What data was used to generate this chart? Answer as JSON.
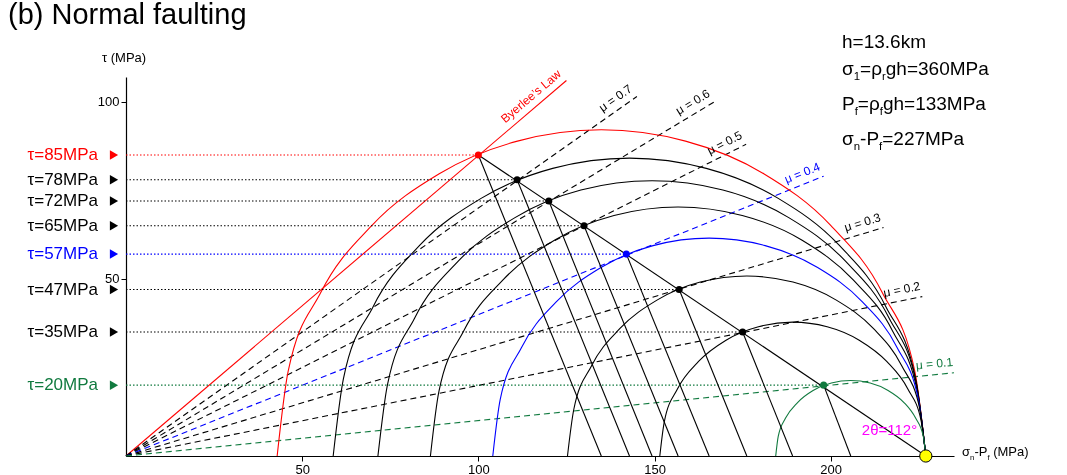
{
  "chart_data": {
    "type": "line",
    "title": "(b) Normal faulting",
    "xlabel": "σ$_{n}$-P$_{f}$ (MPa)",
    "ylabel": "τ (MPa)",
    "xlim": [
      0,
      235
    ],
    "ylim": [
      0,
      107
    ],
    "xticks": [
      50,
      100,
      150,
      200
    ],
    "yticks": [
      50,
      100
    ],
    "grid": false,
    "legend": "left",
    "annotations": [
      "h=13.6km",
      "σ$_{1}$=ρ$_{r}$gh=360MPa",
      "P$_{f}$=ρ$_{f}$gh=133MPa",
      "σ$_{n}$-P$_{f}$=227MPa",
      {
        "text": "2θ=112°",
        "x": 206,
        "y": 0
      }
    ],
    "series": [
      {
        "name": "Byerlee’s Law",
        "type": "line",
        "color": "#ff0000",
        "line_style": "solid",
        "x": [
          0,
          125
        ],
        "values": [
          0,
          106
        ]
      },
      {
        "name": "μ = 0.7",
        "type": "line",
        "color": "#000000",
        "line_style": "dashed",
        "x": [
          0,
          145
        ],
        "values": [
          0,
          101.5
        ]
      },
      {
        "name": "μ = 0.6",
        "type": "line",
        "color": "#000000",
        "line_style": "dashed",
        "x": [
          0,
          167
        ],
        "values": [
          0,
          100
        ]
      },
      {
        "name": "μ = 0.5",
        "type": "line",
        "color": "#000000",
        "line_style": "dashed",
        "x": [
          0,
          176
        ],
        "values": [
          0,
          88
        ]
      },
      {
        "name": "μ = 0.4",
        "type": "line",
        "color": "#0000ff",
        "line_style": "dashed",
        "x": [
          0,
          198
        ],
        "values": [
          0,
          79
        ]
      },
      {
        "name": "μ = 0.3",
        "type": "line",
        "color": "#000000",
        "line_style": "dashed",
        "x": [
          0,
          215
        ],
        "values": [
          0,
          64.5
        ]
      },
      {
        "name": "μ = 0.2",
        "type": "line",
        "color": "#000000",
        "line_style": "dashed",
        "x": [
          0,
          226
        ],
        "values": [
          0,
          45
        ]
      },
      {
        "name": "μ = 0.1",
        "type": "line",
        "color": "#117a3f",
        "line_style": "dashed",
        "x": [
          0,
          235
        ],
        "values": [
          0,
          23.5
        ]
      },
      {
        "type": "line",
        "color": "#ff0000",
        "line_style": "solid",
        "x": [
          42.9,
          46.0,
          55.2,
          69.8,
          88.9,
          111.1,
          134.9,
          158.8,
          181.0,
          200.0,
          214.7,
          223.9,
          227.0
        ],
        "values": [
          0,
          23.8,
          46.0,
          65.1,
          79.7,
          88.9,
          92.1,
          88.9,
          79.7,
          65.1,
          46.0,
          23.8,
          0
        ]
      },
      {
        "type": "line",
        "color": "#000000",
        "line_style": "solid",
        "x": [
          58.8,
          61.7,
          70.1,
          83.4,
          100.9,
          121.1,
          142.9,
          164.7,
          185.0,
          202.4,
          215.7,
          224.1,
          227.0
        ],
        "values": [
          0,
          21.8,
          42.1,
          59.5,
          72.8,
          81.2,
          84.1,
          81.2,
          72.8,
          59.5,
          42.1,
          21.8,
          0
        ]
      },
      {
        "type": "line",
        "color": "#000000",
        "line_style": "solid",
        "x": [
          71.5,
          74.2,
          81.9,
          94.3,
          110.4,
          129.1,
          149.3,
          169.4,
          188.1,
          204.2,
          216.6,
          224.4,
          227.0
        ],
        "values": [
          0,
          20.1,
          38.9,
          55.0,
          67.3,
          75.1,
          77.7,
          75.1,
          67.3,
          55.0,
          38.9,
          20.1,
          0
        ]
      },
      {
        "type": "line",
        "color": "#000000",
        "line_style": "solid",
        "x": [
          86.4,
          88.8,
          95.8,
          107.0,
          121.6,
          138.5,
          156.7,
          174.9,
          191.9,
          206.4,
          217.6,
          224.6,
          227.0
        ],
        "values": [
          0,
          18.2,
          35.2,
          49.7,
          60.9,
          67.9,
          70.3,
          67.9,
          60.9,
          49.7,
          35.2,
          18.2,
          0
        ]
      },
      {
        "type": "line",
        "color": "#0000ff",
        "line_style": "solid",
        "x": [
          104.1,
          106.2,
          112.3,
          122.1,
          134.8,
          149.6,
          165.5,
          181.4,
          196.3,
          209.0,
          218.8,
          224.9,
          227.0
        ],
        "values": [
          0,
          15.9,
          30.7,
          43.5,
          53.2,
          59.4,
          61.5,
          59.4,
          53.2,
          43.5,
          30.7,
          15.9,
          0
        ]
      },
      {
        "type": "line",
        "color": "#000000",
        "line_style": "solid",
        "x": [
          125.3,
          127.1,
          132.1,
          140.2,
          150.7,
          163.0,
          176.2,
          189.3,
          201.6,
          212.1,
          220.2,
          225.3,
          227.0
        ],
        "values": [
          0,
          13.2,
          25.4,
          36.0,
          44.0,
          49.1,
          50.8,
          49.1,
          44.0,
          36.0,
          25.4,
          13.2,
          0
        ]
      },
      {
        "type": "line",
        "color": "#000000",
        "line_style": "solid",
        "x": [
          151.5,
          152.8,
          156.5,
          162.5,
          170.3,
          179.5,
          189.2,
          199.0,
          208.1,
          215.9,
          221.9,
          225.7,
          227.0
        ],
        "values": [
          0,
          9.8,
          18.9,
          26.7,
          32.7,
          36.5,
          37.8,
          36.5,
          32.7,
          26.7,
          18.9,
          9.8,
          0
        ]
      },
      {
        "type": "line",
        "color": "#117a3f",
        "line_style": "solid",
        "x": [
          184.4,
          185.1,
          187.2,
          190.6,
          195.0,
          200.2,
          205.7,
          211.2,
          216.3,
          220.8,
          224.1,
          226.3,
          227.0
        ],
        "values": [
          0,
          5.5,
          10.7,
          15.1,
          18.5,
          20.6,
          21.3,
          20.6,
          18.5,
          15.1,
          10.7,
          5.5,
          0
        ]
      },
      {
        "name": "τ=85MPa",
        "type": "line",
        "color": "#ff0000",
        "line_style": "dotted",
        "x": [
          0,
          100
        ],
        "values": [
          85,
          85
        ]
      },
      {
        "name": "τ=78MPa",
        "type": "line",
        "color": "#000000",
        "line_style": "dotted",
        "x": [
          0,
          111
        ],
        "values": [
          78,
          78
        ]
      },
      {
        "name": "τ=72MPa",
        "type": "line",
        "color": "#000000",
        "line_style": "dotted",
        "x": [
          0,
          120
        ],
        "values": [
          72,
          72
        ]
      },
      {
        "name": "τ=65MPa",
        "type": "line",
        "color": "#000000",
        "line_style": "dotted",
        "x": [
          0,
          130
        ],
        "values": [
          65,
          65
        ]
      },
      {
        "name": "τ=57MPa",
        "type": "line",
        "color": "#0000ff",
        "line_style": "dotted",
        "x": [
          0,
          142
        ],
        "values": [
          57,
          57
        ]
      },
      {
        "name": "τ=47MPa",
        "type": "line",
        "color": "#000000",
        "line_style": "dotted",
        "x": [
          0,
          157
        ],
        "values": [
          47,
          47
        ]
      },
      {
        "name": "τ=35MPa",
        "type": "line",
        "color": "#000000",
        "line_style": "dotted",
        "x": [
          0,
          175
        ],
        "values": [
          35,
          35
        ]
      },
      {
        "name": "τ=20MPa",
        "type": "line",
        "color": "#117a3f",
        "line_style": "dotted",
        "x": [
          0,
          198
        ],
        "values": [
          20,
          20
        ]
      },
      {
        "type": "line",
        "color": "#000000",
        "line_style": "solid",
        "x": [
          100,
          227
        ],
        "values": [
          85,
          0
        ]
      },
      {
        "type": "line",
        "color": "#000000",
        "line_style": "solid",
        "x": [
          100,
          134.9
        ],
        "values": [
          85,
          0
        ]
      },
      {
        "type": "line",
        "color": "#000000",
        "line_style": "solid",
        "x": [
          111,
          142.9
        ],
        "values": [
          78,
          0
        ]
      },
      {
        "type": "line",
        "color": "#000000",
        "line_style": "solid",
        "x": [
          120,
          149.3
        ],
        "values": [
          72,
          0
        ]
      },
      {
        "type": "line",
        "color": "#000000",
        "line_style": "solid",
        "x": [
          130,
          156.7
        ],
        "values": [
          65,
          0
        ]
      },
      {
        "type": "line",
        "color": "#000000",
        "line_style": "solid",
        "x": [
          142,
          165.5
        ],
        "values": [
          57,
          0
        ]
      },
      {
        "type": "line",
        "color": "#000000",
        "line_style": "solid",
        "x": [
          157,
          176.2
        ],
        "values": [
          47,
          0
        ]
      },
      {
        "type": "line",
        "color": "#000000",
        "line_style": "solid",
        "x": [
          175,
          189.2
        ],
        "values": [
          35,
          0
        ]
      },
      {
        "type": "line",
        "color": "#000000",
        "line_style": "solid",
        "x": [
          198,
          205.7
        ],
        "values": [
          20,
          0
        ]
      },
      {
        "type": "scatter",
        "marker": "circle",
        "colors": [
          "#ff0000",
          "#000000",
          "#000000",
          "#000000",
          "#0000ff",
          "#000000",
          "#000000",
          "#117a3f"
        ],
        "x": [
          100,
          111,
          120,
          130,
          142,
          157,
          175,
          198
        ],
        "values": [
          85,
          78,
          72,
          65,
          57,
          47,
          35,
          20
        ]
      },
      {
        "type": "scatter",
        "marker": "circle",
        "color": "#ffff00",
        "x": [
          227
        ],
        "values": [
          0
        ]
      }
    ]
  }
}
